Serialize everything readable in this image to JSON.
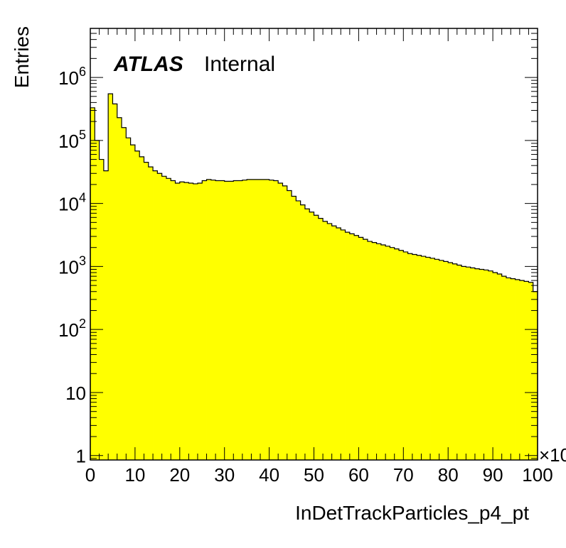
{
  "chart_data": {
    "type": "histogram",
    "xlabel": "InDetTrackParticles_p4_pt",
    "ylabel": "Entries",
    "x_multiplier_label": "×10",
    "label_bold": "ATLAS",
    "label_text": "Internal",
    "xlim": [
      0,
      100
    ],
    "ylim": [
      0.85,
      6000000
    ],
    "yscale": "log",
    "fill_color": "#ffff00",
    "line_color": "#000000",
    "x_ticks": [
      "0",
      "10",
      "20",
      "30",
      "40",
      "50",
      "60",
      "70",
      "80",
      "90",
      "100"
    ],
    "y_ticks": [
      {
        "value": 1,
        "label": "1"
      },
      {
        "value": 10,
        "label": "10"
      },
      {
        "value": 100,
        "label": "10^2"
      },
      {
        "value": 1000,
        "label": "10^3"
      },
      {
        "value": 10000,
        "label": "10^4"
      },
      {
        "value": 100000,
        "label": "10^5"
      },
      {
        "value": 1000000,
        "label": "10^6"
      }
    ],
    "bin_width": 1,
    "values": [
      330000,
      100000,
      50000,
      33000,
      550000,
      380000,
      230000,
      160000,
      110000,
      85000,
      68000,
      55000,
      45000,
      38000,
      33000,
      30000,
      27000,
      25000,
      23000,
      21000,
      22000,
      21500,
      21000,
      20500,
      21000,
      23000,
      24000,
      23500,
      23000,
      23000,
      22500,
      22500,
      23000,
      23000,
      23500,
      24000,
      24000,
      24000,
      24000,
      24000,
      23500,
      23000,
      21000,
      19000,
      16000,
      13000,
      11000,
      9500,
      8200,
      7300,
      6500,
      5800,
      5200,
      4800,
      4400,
      4100,
      3800,
      3500,
      3300,
      3100,
      2900,
      2700,
      2500,
      2400,
      2300,
      2200,
      2100,
      2000,
      1900,
      1800,
      1700,
      1600,
      1550,
      1500,
      1450,
      1400,
      1350,
      1300,
      1250,
      1200,
      1150,
      1100,
      1050,
      1000,
      980,
      950,
      920,
      900,
      880,
      850,
      800,
      760,
      700,
      660,
      640,
      620,
      600,
      580,
      560,
      400
    ]
  }
}
